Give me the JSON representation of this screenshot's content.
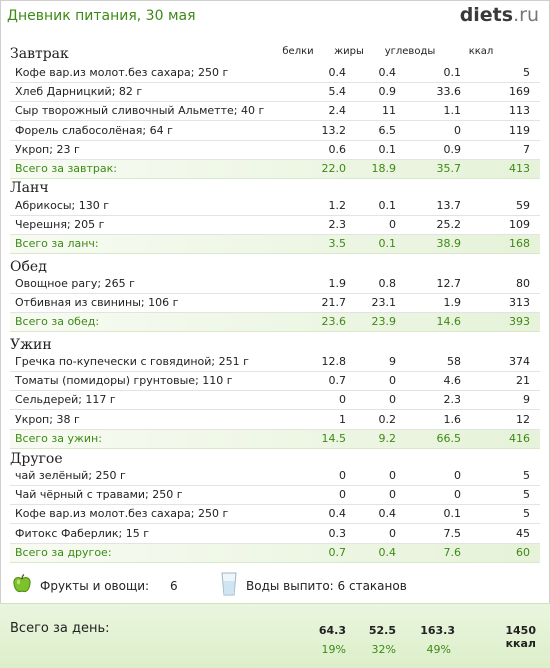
{
  "header": {
    "title": "Дневник питания, 30 мая",
    "brand_main": "diets",
    "brand_tld": ".ru"
  },
  "columns": {
    "protein": "белки",
    "fat": "жиры",
    "carbs": "углеводы",
    "kcal": "ккал"
  },
  "sections": [
    {
      "name": "Завтрак",
      "rows": [
        {
          "name": "Кофе вар.из молот.без сахара; 250 г",
          "p": "0.4",
          "f": "0.4",
          "c": "0.1",
          "k": "5"
        },
        {
          "name": "Хлеб Дарницкий; 82 г",
          "p": "5.4",
          "f": "0.9",
          "c": "33.6",
          "k": "169"
        },
        {
          "name": "Сыр творожный сливочный Альметте; 40 г",
          "p": "2.4",
          "f": "11",
          "c": "1.1",
          "k": "113"
        },
        {
          "name": "Форель слабосолёная; 64 г",
          "p": "13.2",
          "f": "6.5",
          "c": "0",
          "k": "119"
        },
        {
          "name": "Укроп; 23 г",
          "p": "0.6",
          "f": "0.1",
          "c": "0.9",
          "k": "7"
        }
      ],
      "total": {
        "name": "Всего за завтрак:",
        "p": "22.0",
        "f": "18.9",
        "c": "35.7",
        "k": "413"
      }
    },
    {
      "name": "Ланч",
      "rows": [
        {
          "name": "Абрикосы; 130 г",
          "p": "1.2",
          "f": "0.1",
          "c": "13.7",
          "k": "59"
        },
        {
          "name": "Черешня; 205 г",
          "p": "2.3",
          "f": "0",
          "c": "25.2",
          "k": "109"
        }
      ],
      "total": {
        "name": "Всего за ланч:",
        "p": "3.5",
        "f": "0.1",
        "c": "38.9",
        "k": "168"
      }
    },
    {
      "name": "Обед",
      "rows": [
        {
          "name": "Овощное рагу; 265 г",
          "p": "1.9",
          "f": "0.8",
          "c": "12.7",
          "k": "80"
        },
        {
          "name": "Отбивная из свинины; 106 г",
          "p": "21.7",
          "f": "23.1",
          "c": "1.9",
          "k": "313"
        }
      ],
      "total": {
        "name": "Всего за обед:",
        "p": "23.6",
        "f": "23.9",
        "c": "14.6",
        "k": "393"
      }
    },
    {
      "name": "Ужин",
      "rows": [
        {
          "name": "Гречка по-купечески с говядиной; 251 г",
          "p": "12.8",
          "f": "9",
          "c": "58",
          "k": "374"
        },
        {
          "name": "Томаты (помидоры) грунтовые; 110 г",
          "p": "0.7",
          "f": "0",
          "c": "4.6",
          "k": "21"
        },
        {
          "name": "Сельдерей; 117 г",
          "p": "0",
          "f": "0",
          "c": "2.3",
          "k": "9"
        },
        {
          "name": "Укроп; 38 г",
          "p": "1",
          "f": "0.2",
          "c": "1.6",
          "k": "12"
        }
      ],
      "total": {
        "name": "Всего за ужин:",
        "p": "14.5",
        "f": "9.2",
        "c": "66.5",
        "k": "416"
      }
    },
    {
      "name": "Другое",
      "rows": [
        {
          "name": "чай зелёный; 250 г",
          "p": "0",
          "f": "0",
          "c": "0",
          "k": "5"
        },
        {
          "name": "Чай чёрный с травами; 250 г",
          "p": "0",
          "f": "0",
          "c": "0",
          "k": "5"
        },
        {
          "name": "Кофе вар.из молот.без сахара; 250 г",
          "p": "0.4",
          "f": "0.4",
          "c": "0.1",
          "k": "5"
        },
        {
          "name": "Фитокс Фаберлик; 15 г",
          "p": "0.3",
          "f": "0",
          "c": "7.5",
          "k": "45"
        }
      ],
      "total": {
        "name": "Всего за другое:",
        "p": "0.7",
        "f": "0.4",
        "c": "7.6",
        "k": "60"
      }
    }
  ],
  "extras": {
    "fruits_label": "Фрукты и овощи:",
    "fruits_value": "6",
    "water_text": "Воды выпито: 6 стаканов",
    "apple_icon": "green-apple-icon",
    "glass_icon": "water-glass-icon"
  },
  "day": {
    "label": "Всего за день:",
    "protein": "64.3",
    "fat": "52.5",
    "carbs": "163.3",
    "kcal": "1450 ккал",
    "protein_pct": "19%",
    "fat_pct": "32%",
    "carbs_pct": "49%"
  },
  "colors": {
    "accent_green": "#3d8a16",
    "total_bg": "#e6f2d9",
    "day_bg": "#dcefc9"
  }
}
